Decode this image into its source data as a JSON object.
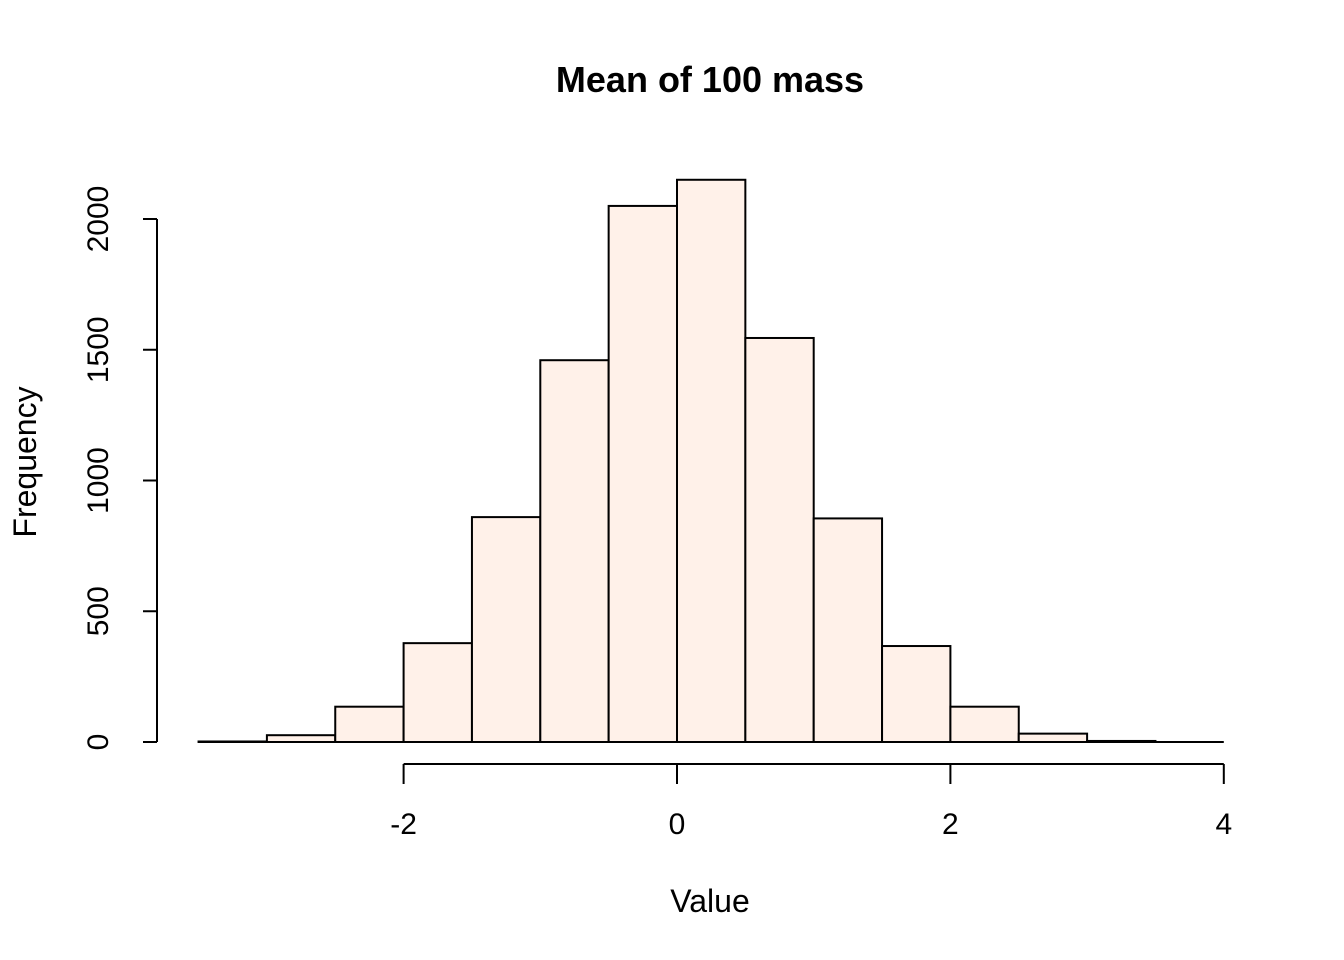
{
  "chart_data": {
    "type": "bar",
    "subtype": "histogram",
    "title": "Mean of 100 mass",
    "xlabel": "Value",
    "ylabel": "Frequency",
    "bar_color": "#FFF1E9",
    "edge_color": "#000000",
    "bin_width": 0.5,
    "bins": [
      {
        "start": -3.5,
        "end": -3.0,
        "value": 2
      },
      {
        "start": -3.0,
        "end": -2.5,
        "value": 26
      },
      {
        "start": -2.5,
        "end": -2.0,
        "value": 135
      },
      {
        "start": -2.0,
        "end": -1.5,
        "value": 378
      },
      {
        "start": -1.5,
        "end": -1.0,
        "value": 860
      },
      {
        "start": -1.0,
        "end": -0.5,
        "value": 1460
      },
      {
        "start": -0.5,
        "end": 0.0,
        "value": 2050
      },
      {
        "start": 0.0,
        "end": 0.5,
        "value": 2150
      },
      {
        "start": 0.5,
        "end": 1.0,
        "value": 1545
      },
      {
        "start": 1.0,
        "end": 1.5,
        "value": 855
      },
      {
        "start": 1.5,
        "end": 2.0,
        "value": 367
      },
      {
        "start": 2.0,
        "end": 2.5,
        "value": 135
      },
      {
        "start": 2.5,
        "end": 3.0,
        "value": 32
      },
      {
        "start": 3.0,
        "end": 3.5,
        "value": 4
      }
    ],
    "x_ticks": [
      -2,
      0,
      2,
      4
    ],
    "x_tick_labels": [
      "-2",
      "0",
      "2",
      "4"
    ],
    "y_ticks": [
      0,
      500,
      1000,
      1500,
      2000
    ],
    "y_tick_labels": [
      "0",
      "500",
      "1000",
      "1500",
      "2000"
    ],
    "xlim": [
      -3.5,
      4
    ],
    "ylim": [
      0,
      2000
    ],
    "grid": false,
    "legend": "none"
  }
}
